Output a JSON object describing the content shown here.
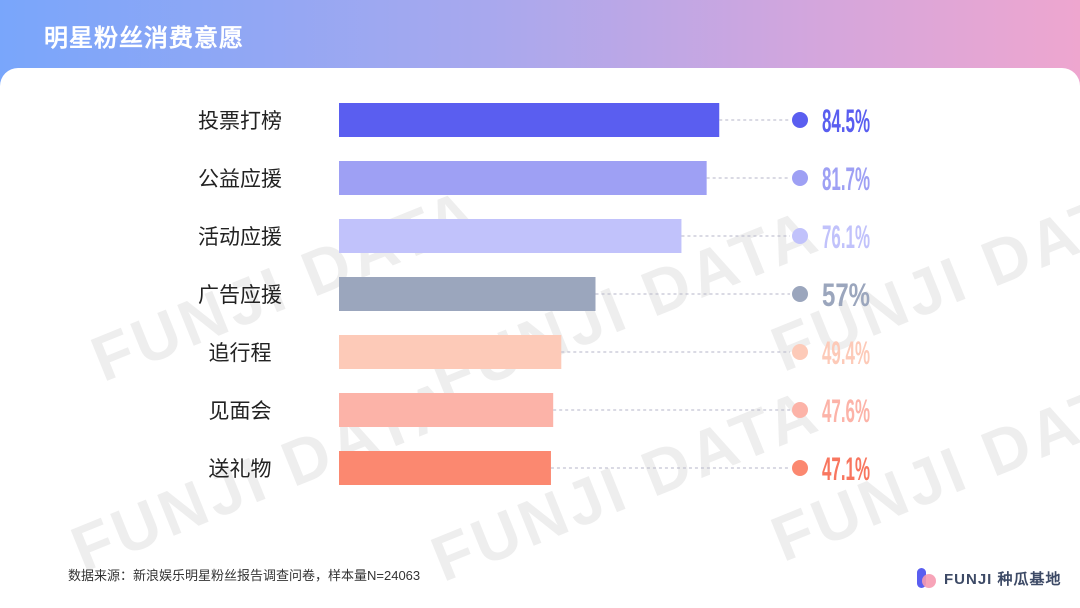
{
  "header": {
    "title": "明星粉丝消费意愿"
  },
  "watermark": {
    "text": "FUNJI DATA"
  },
  "footnote": "数据来源：新浪娱乐明星粉丝报告调查问卷，样本量N=24063",
  "brand": {
    "name": "FUNJI 种瓜基地"
  },
  "chart_data": {
    "type": "bar",
    "orientation": "horizontal",
    "title": "明星粉丝消费意愿",
    "categories": [
      "投票打榜",
      "公益应援",
      "活动应援",
      "广告应援",
      "追行程",
      "见面会",
      "送礼物"
    ],
    "values": [
      84.5,
      81.7,
      76.1,
      57,
      49.4,
      47.6,
      47.1
    ],
    "value_labels": [
      "84.5%",
      "81.7%",
      "76.1%",
      "57%",
      "49.4%",
      "47.6%",
      "47.1%"
    ],
    "colors": [
      "#5a5ef0",
      "#9ea0f4",
      "#c1c2fb",
      "#9ba6bd",
      "#fdcab8",
      "#fcb3a8",
      "#fb8870"
    ],
    "label_colors": [
      "#5a5ef0",
      "#9ea0f4",
      "#c1c2fb",
      "#9ba6bd",
      "#fdcab8",
      "#fcb3a8",
      "#f8765f"
    ],
    "xlim": [
      0,
      100
    ],
    "grid": false,
    "legend": "none"
  }
}
